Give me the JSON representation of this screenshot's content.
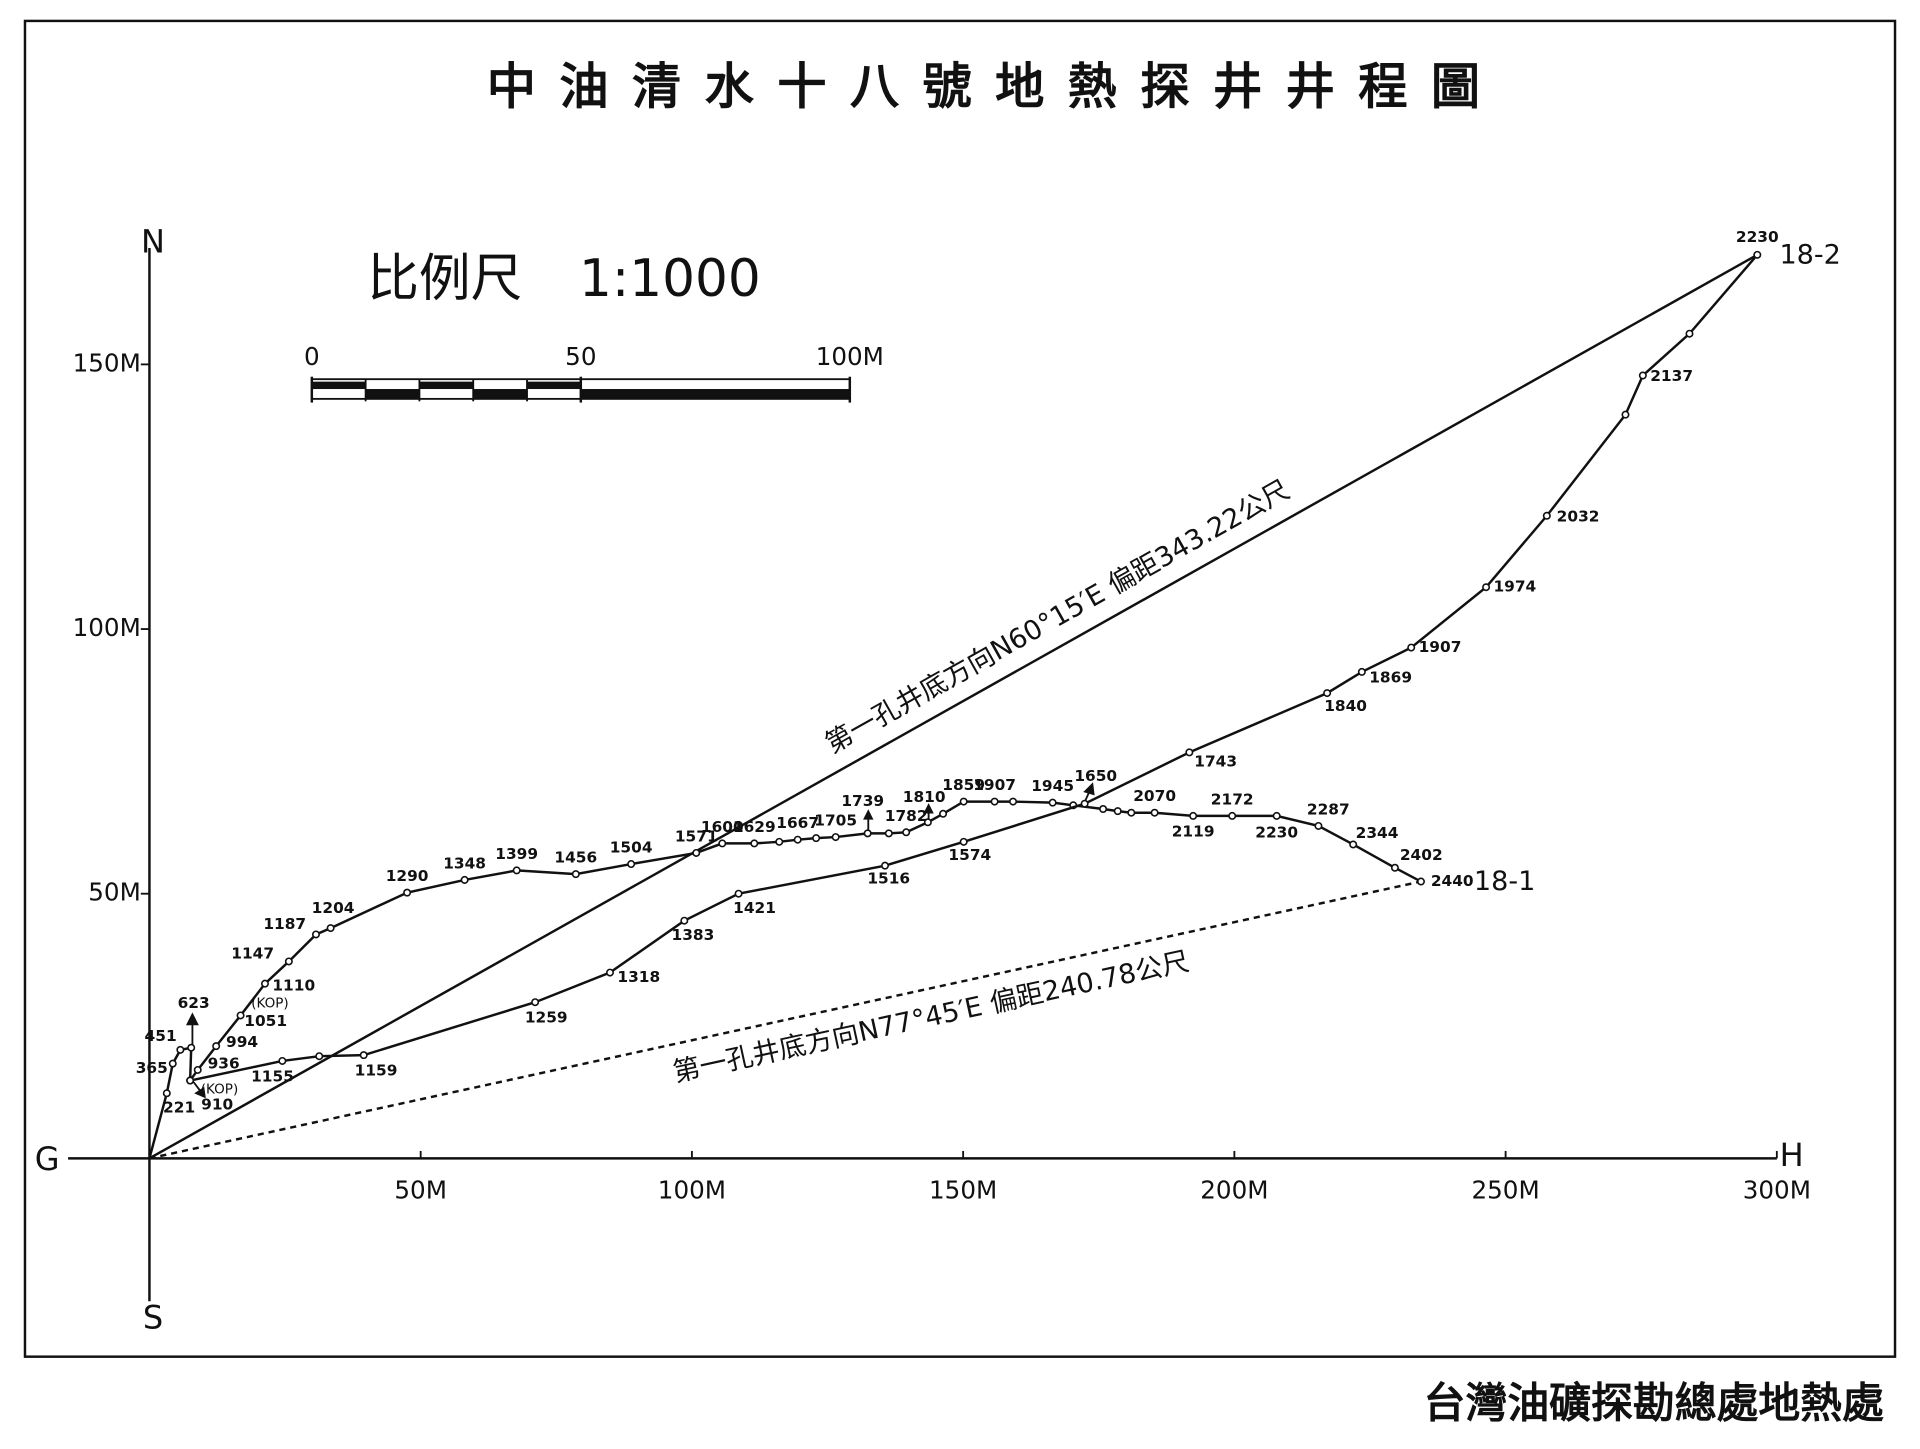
{
  "chart_data": {
    "type": "line",
    "title": "中油清水十八號地熱探井井程圖",
    "footer": "台灣油礦探勘總處地熱處",
    "axis_labels": {
      "north": "N",
      "south": "S",
      "origin": "G",
      "east": "H"
    },
    "xlim": [
      -15,
      300
    ],
    "ylim": [
      -27,
      172
    ],
    "xticks": [
      {
        "value": 50,
        "label": "50M"
      },
      {
        "value": 100,
        "label": "100M"
      },
      {
        "value": 150,
        "label": "150M"
      },
      {
        "value": 200,
        "label": "200M"
      },
      {
        "value": 250,
        "label": "250M"
      },
      {
        "value": 300,
        "label": "300M"
      }
    ],
    "yticks": [
      {
        "value": 50,
        "label": "50M"
      },
      {
        "value": 100,
        "label": "100M"
      },
      {
        "value": 150,
        "label": "150M"
      }
    ],
    "scale_bar": {
      "title": "比例尺",
      "ratio": "1:1000",
      "ticks": [
        0,
        50,
        {
          "value": 100,
          "label": "100M"
        }
      ]
    },
    "annotations": {
      "kop": "(KOP)",
      "direction_18_2": "第一孔井底方向N60°15′E 偏距343.22公尺",
      "direction_18_1": "第一孔井底方向N77°45′E 偏距240.78公尺"
    },
    "series": [
      {
        "name": "18-1",
        "color": "#111111",
        "x": [
          0,
          3.2,
          4.3,
          5.7,
          7.7,
          7.5,
          8.9,
          12.3,
          16.8,
          21.3,
          25.7,
          30.7,
          33.4,
          47.5,
          58.1,
          67.7,
          78.6,
          88.8,
          100.8,
          105.6,
          111.5,
          116.1,
          119.5,
          122.9,
          126.5,
          132.4,
          136.3,
          139.5,
          143.5,
          146.3,
          150.1,
          155.8,
          159.2,
          166.5,
          170.3,
          175.8,
          178.5,
          181.0,
          185.3,
          192.4,
          199.6,
          207.8,
          215.5,
          221.9,
          229.6,
          234.4
        ],
        "y": [
          0,
          12.3,
          17.9,
          20.5,
          20.9,
          14.7,
          16.7,
          21.2,
          27.0,
          33.0,
          37.2,
          42.3,
          43.5,
          50.2,
          52.6,
          54.4,
          53.7,
          55.6,
          57.7,
          59.5,
          59.5,
          59.8,
          60.2,
          60.5,
          60.7,
          61.4,
          61.4,
          61.6,
          63.5,
          65.1,
          67.4,
          67.4,
          67.4,
          67.2,
          66.7,
          66.0,
          65.6,
          65.3,
          65.3,
          64.7,
          64.7,
          64.7,
          62.8,
          59.3,
          54.9,
          52.3
        ],
        "depths": [
          null,
          221,
          365,
          451,
          623,
          910,
          936,
          994,
          1051,
          1110,
          1147,
          1187,
          1204,
          1290,
          1348,
          1399,
          1456,
          1504,
          1571,
          1600,
          1629,
          null,
          1667,
          null,
          1705,
          1739,
          null,
          1782,
          1810,
          null,
          1859,
          1907,
          null,
          1945,
          null,
          null,
          null,
          null,
          2070,
          2119,
          2172,
          2230,
          2287,
          2344,
          2402,
          2440
        ]
      },
      {
        "name": "18-2",
        "color": "#111111",
        "x": [
          7.5,
          24.5,
          31.3,
          39.5,
          71.1,
          84.9,
          98.6,
          108.6,
          135.6,
          150.1,
          172.4,
          191.7,
          217.1,
          223.5,
          232.6,
          246.4,
          257.6,
          272.1,
          275.3,
          283.9,
          296.4
        ],
        "y": [
          14.7,
          18.4,
          19.3,
          19.5,
          29.5,
          35.1,
          44.9,
          50.0,
          55.3,
          59.8,
          67.0,
          76.7,
          87.9,
          91.9,
          96.5,
          107.9,
          121.4,
          140.5,
          147.9,
          155.8,
          170.7
        ],
        "depths": [
          null,
          1155,
          null,
          1159,
          1259,
          1318,
          1383,
          1421,
          1516,
          1574,
          1650,
          1743,
          1840,
          1869,
          1907,
          1974,
          2032,
          null,
          2137,
          null,
          2230
        ]
      }
    ]
  }
}
